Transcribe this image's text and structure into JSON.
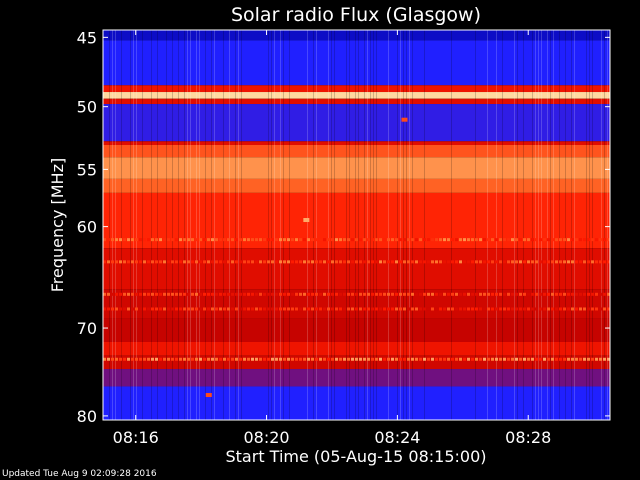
{
  "chart_data": {
    "type": "heatmap",
    "title": "Solar radio Flux (Glasgow)",
    "xlabel": "Start Time (05-Aug-15 08:15:00)",
    "ylabel": "Frequency [MHz]",
    "x_ticks": [
      "08:16",
      "08:20",
      "08:24",
      "08:28"
    ],
    "y_ticks": [
      45,
      50,
      55,
      60,
      70,
      80
    ],
    "y_scale": "log",
    "xlim": [
      "08:15:00",
      "08:30:30"
    ],
    "ylim": [
      44.5,
      80.5
    ],
    "colormap": [
      "#0000a0",
      "#2020ff",
      "#c00000",
      "#ff1a00",
      "#ff7a30",
      "#ffd9a0"
    ],
    "bands": [
      {
        "from": 44.5,
        "to": 45.2,
        "level": 0.08
      },
      {
        "from": 45.2,
        "to": 48.4,
        "level": 0.2
      },
      {
        "from": 48.4,
        "to": 48.9,
        "level": 0.55
      },
      {
        "from": 48.9,
        "to": 49.4,
        "level": 1.0
      },
      {
        "from": 49.4,
        "to": 49.8,
        "level": 0.5
      },
      {
        "from": 49.8,
        "to": 52.7,
        "level": 0.22
      },
      {
        "from": 52.7,
        "to": 53.0,
        "level": 0.5
      },
      {
        "from": 53.0,
        "to": 54.0,
        "level": 0.72
      },
      {
        "from": 54.0,
        "to": 55.8,
        "level": 0.85
      },
      {
        "from": 55.8,
        "to": 57.0,
        "level": 0.75
      },
      {
        "from": 57.0,
        "to": 62.0,
        "level": 0.62
      },
      {
        "from": 62.0,
        "to": 66.0,
        "level": 0.5
      },
      {
        "from": 66.0,
        "to": 69.0,
        "level": 0.45
      },
      {
        "from": 69.0,
        "to": 71.5,
        "level": 0.42
      },
      {
        "from": 71.5,
        "to": 73.0,
        "level": 0.55
      },
      {
        "from": 73.0,
        "to": 74.5,
        "level": 0.45
      },
      {
        "from": 74.5,
        "to": 76.5,
        "level": 0.3
      },
      {
        "from": 76.5,
        "to": 80.5,
        "level": 0.2
      }
    ],
    "stripes": [
      {
        "freq": 61.2,
        "level": 0.7
      },
      {
        "freq": 63.3,
        "level": 0.68
      },
      {
        "freq": 66.5,
        "level": 0.62
      },
      {
        "freq": 68.0,
        "level": 0.6
      },
      {
        "freq": 73.4,
        "level": 0.75
      }
    ],
    "spots": [
      {
        "time": "08:24:13",
        "freq": 51.0,
        "level": 0.7
      },
      {
        "time": "08:21:13",
        "freq": 59.4,
        "level": 0.9
      },
      {
        "time": "08:18:14",
        "freq": 77.5,
        "level": 0.7
      }
    ]
  },
  "footer": {
    "updated": "Updated Tue Aug  9 02:09:28 2016"
  }
}
